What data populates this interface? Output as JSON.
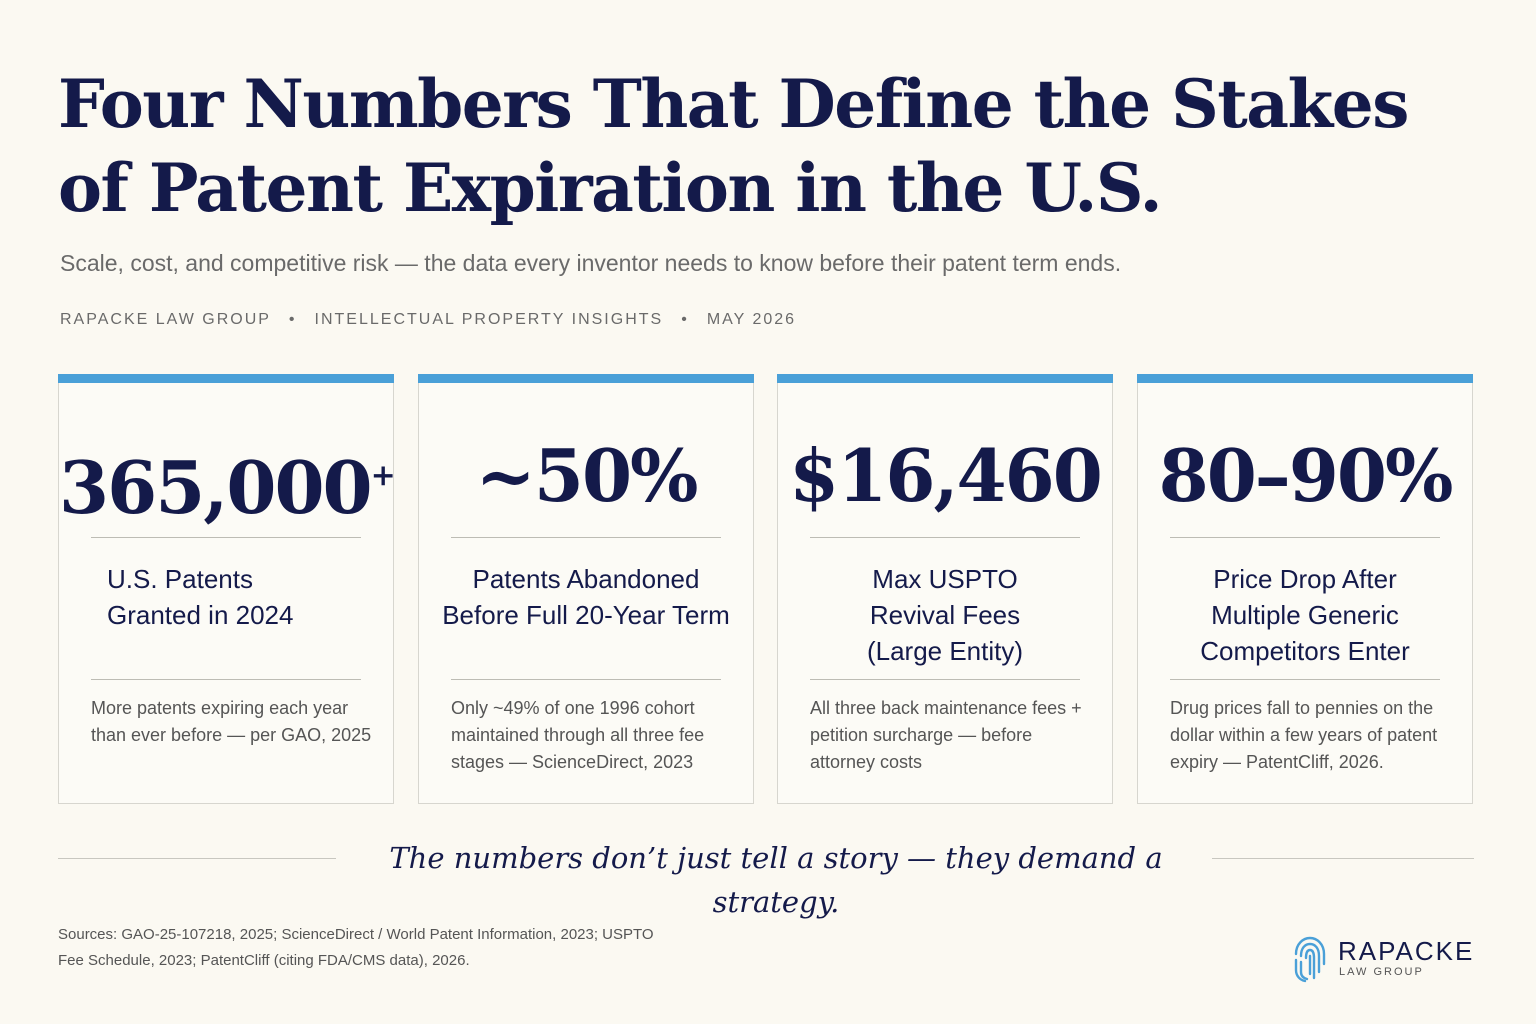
{
  "header": {
    "title": "Four Numbers That Define the Stakes of Patent Expiration in the U.S.",
    "subtitle": "Scale, cost, and competitive risk — the data every inventor needs to know before their patent term ends.",
    "meta": [
      "RAPACKE LAW GROUP",
      "INTELLECTUAL PROPERTY INSIGHTS",
      "MAY 2026"
    ],
    "separator": "•"
  },
  "cards": [
    {
      "value": "365,000",
      "value_suffix": "+",
      "label": "U.S. Patents Granted in 2024",
      "note": "More patents expiring each year than ever before — per GAO, 2025"
    },
    {
      "value": "~50%",
      "value_suffix": "",
      "label": "Patents Abandoned Before Full 20-Year Term",
      "note": "Only ~49% of one 1996 cohort maintained through all three fee stages — ScienceDirect, 2023"
    },
    {
      "value": "$16,460",
      "value_suffix": "",
      "label": "Max USPTO Revival Fees (Large Entity)",
      "note": "All three back maintenance fees + petition surcharge — before attorney costs"
    },
    {
      "value": "80–90%",
      "value_suffix": "",
      "label": "Price Drop After Multiple Generic Competitors Enter",
      "note": "Drug prices fall to pennies on the dollar within a few years of patent expiry — PatentCliff, 2026."
    }
  ],
  "tagline": "The numbers don’t just tell a story — they demand a strategy.",
  "sources": "Sources:  GAO-25-107218, 2025; ScienceDirect / World Patent Information, 2023; USPTO Fee Schedule, 2023; PatentCliff (citing FDA/CMS data), 2026.",
  "logo": {
    "name": "RAPACKE",
    "sub": "LAW GROUP",
    "icon": "fingerprint-icon"
  },
  "colors": {
    "background": "#fbf9f2",
    "navy": "#141a4a",
    "accent": "#4aa0d8"
  }
}
